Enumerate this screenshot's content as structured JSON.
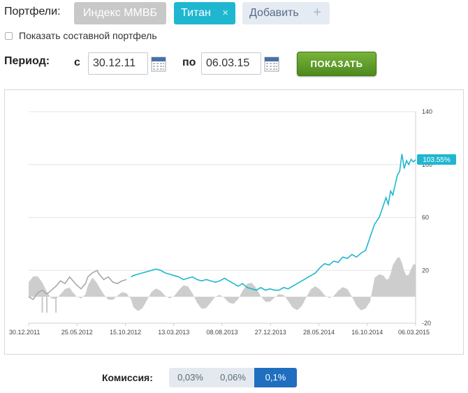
{
  "portfolios": {
    "label": "Портфели:",
    "chips": [
      {
        "label": "Индекс ММВБ",
        "state": "inactive"
      },
      {
        "label": "Титан",
        "state": "active",
        "remove_icon": "×"
      }
    ],
    "add": {
      "label": "Добавить",
      "icon": "+"
    }
  },
  "composite": {
    "label": "Показать составной портфель",
    "checked": false
  },
  "period": {
    "label": "Период:",
    "from_label": "с",
    "from_value": "30.12.11",
    "to_label": "по",
    "to_value": "06.03.15",
    "calendar_icon": "calendar-icon",
    "submit_label": "ПОКАЗАТЬ"
  },
  "chart_data": {
    "type": "line",
    "x_labels": [
      "30.12.2011",
      "25.05.2012",
      "15.10.2012",
      "13.03.2013",
      "08.08.2013",
      "27.12.2013",
      "28.05.2014",
      "16.10.2014",
      "06.03.2015"
    ],
    "y_right_ticks": [
      140,
      100,
      60,
      20,
      -20
    ],
    "ylim": [
      -20,
      140
    ],
    "grid": true,
    "end_badge": "103.55%",
    "colors": {
      "line": "#1fb7d0",
      "line_early": "#a8a8a8",
      "area": "#c8c8c8",
      "badge": "#1fb7d0"
    },
    "series": [
      {
        "points": [
          [
            0,
            0
          ],
          [
            2,
            -2
          ],
          [
            4,
            3
          ],
          [
            6,
            5
          ],
          [
            8,
            2
          ],
          [
            10,
            5
          ],
          [
            12,
            8
          ],
          [
            14,
            12
          ],
          [
            16,
            10
          ],
          [
            18,
            15
          ],
          [
            19,
            13
          ],
          [
            21,
            9
          ],
          [
            23,
            6
          ],
          [
            25,
            10
          ],
          [
            26,
            15
          ],
          [
            28,
            18
          ],
          [
            30,
            20
          ],
          [
            31,
            17
          ],
          [
            33,
            13
          ],
          [
            35,
            15
          ],
          [
            37,
            11
          ],
          [
            39,
            10
          ],
          [
            41,
            12
          ],
          [
            43,
            13
          ],
          [
            45,
            15
          ],
          [
            46,
            16
          ],
          [
            48,
            17
          ],
          [
            50,
            18
          ],
          [
            52,
            19
          ],
          [
            54,
            20
          ],
          [
            56,
            21
          ],
          [
            58,
            20
          ],
          [
            60,
            18
          ],
          [
            62,
            17
          ],
          [
            64,
            16
          ],
          [
            66,
            15
          ],
          [
            68,
            13
          ],
          [
            70,
            14
          ],
          [
            72,
            15
          ],
          [
            74,
            13
          ],
          [
            76,
            12
          ],
          [
            78,
            13
          ],
          [
            80,
            12
          ],
          [
            82,
            11
          ],
          [
            84,
            12
          ],
          [
            86,
            14
          ],
          [
            88,
            12
          ],
          [
            90,
            10
          ],
          [
            92,
            8
          ],
          [
            94,
            10
          ],
          [
            96,
            7
          ],
          [
            98,
            6
          ],
          [
            100,
            5
          ],
          [
            102,
            7
          ],
          [
            104,
            5
          ],
          [
            106,
            6
          ],
          [
            108,
            5
          ],
          [
            110,
            5
          ],
          [
            112,
            7
          ],
          [
            114,
            6
          ],
          [
            116,
            8
          ],
          [
            118,
            10
          ],
          [
            120,
            12
          ],
          [
            122,
            14
          ],
          [
            124,
            16
          ],
          [
            126,
            18
          ],
          [
            128,
            22
          ],
          [
            130,
            25
          ],
          [
            132,
            24
          ],
          [
            134,
            27
          ],
          [
            136,
            26
          ],
          [
            138,
            30
          ],
          [
            140,
            29
          ],
          [
            142,
            32
          ],
          [
            144,
            30
          ],
          [
            146,
            33
          ],
          [
            148,
            35
          ],
          [
            150,
            45
          ],
          [
            152,
            55
          ],
          [
            154,
            60
          ],
          [
            156,
            70
          ],
          [
            157,
            75
          ],
          [
            158,
            70
          ],
          [
            159,
            80
          ],
          [
            160,
            77
          ],
          [
            162,
            92
          ],
          [
            163,
            95
          ],
          [
            164,
            108
          ],
          [
            165,
            97
          ],
          [
            166,
            103
          ],
          [
            167,
            100
          ],
          [
            168,
            104
          ],
          [
            169,
            102
          ],
          [
            170,
            103.55
          ]
        ]
      }
    ]
  },
  "commission": {
    "label": "Комиссия:",
    "options": [
      "0,03%",
      "0,06%",
      "0,1%"
    ],
    "selected": "0,1%"
  }
}
